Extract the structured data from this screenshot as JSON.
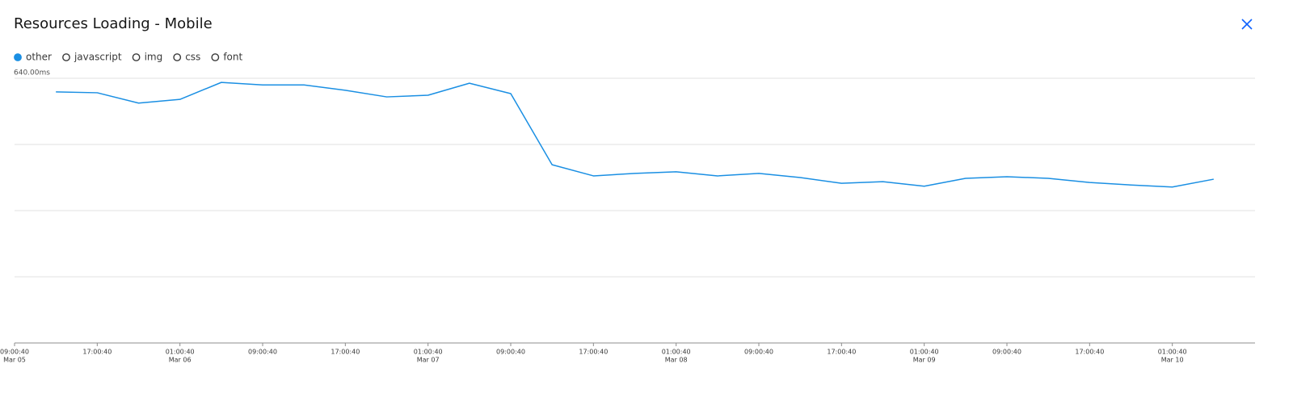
{
  "chart_data": {
    "type": "line",
    "title": "Resources Loading - Mobile",
    "series": [
      {
        "name": "other",
        "color": "#1a8fe3",
        "values": [
          607,
          605,
          580,
          589,
          630,
          624,
          624,
          611,
          595,
          599,
          628,
          603,
          431,
          404,
          410,
          414,
          404,
          410,
          400,
          386,
          390,
          379,
          398,
          402,
          398,
          388,
          382,
          377,
          396
        ]
      }
    ],
    "hidden_series": [
      "javascript",
      "img",
      "css",
      "font"
    ],
    "x": [
      "Mar 05 13:00:40",
      "Mar 05 17:00:40",
      "Mar 05 21:00:40",
      "Mar 06 01:00:40",
      "Mar 06 05:00:40",
      "Mar 06 09:00:40",
      "Mar 06 13:00:40",
      "Mar 06 17:00:40",
      "Mar 06 21:00:40",
      "Mar 07 01:00:40",
      "Mar 07 05:00:40",
      "Mar 07 09:00:40",
      "Mar 07 13:00:40",
      "Mar 07 17:00:40",
      "Mar 07 21:00:40",
      "Mar 08 01:00:40",
      "Mar 08 05:00:40",
      "Mar 08 09:00:40",
      "Mar 08 13:00:40",
      "Mar 08 17:00:40",
      "Mar 08 21:00:40",
      "Mar 09 01:00:40",
      "Mar 09 05:00:40",
      "Mar 09 09:00:40",
      "Mar 09 13:00:40",
      "Mar 09 17:00:40",
      "Mar 09 21:00:40",
      "Mar 10 01:00:40",
      "Mar 10 05:00:40"
    ],
    "xlim": [
      "Mar 05 09:00:40",
      "Mar 10 09:00:40"
    ],
    "xticks": [
      {
        "value": "Mar 05 09:00:40",
        "label": "09:00:40",
        "date": "Mar 05"
      },
      {
        "value": "Mar 05 17:00:40",
        "label": "17:00:40"
      },
      {
        "value": "Mar 06 01:00:40",
        "label": "01:00:40",
        "date": "Mar 06"
      },
      {
        "value": "Mar 06 09:00:40",
        "label": "09:00:40"
      },
      {
        "value": "Mar 06 17:00:40",
        "label": "17:00:40"
      },
      {
        "value": "Mar 07 01:00:40",
        "label": "01:00:40",
        "date": "Mar 07"
      },
      {
        "value": "Mar 07 09:00:40",
        "label": "09:00:40"
      },
      {
        "value": "Mar 07 17:00:40",
        "label": "17:00:40"
      },
      {
        "value": "Mar 08 01:00:40",
        "label": "01:00:40",
        "date": "Mar 08"
      },
      {
        "value": "Mar 08 09:00:40",
        "label": "09:00:40"
      },
      {
        "value": "Mar 08 17:00:40",
        "label": "17:00:40"
      },
      {
        "value": "Mar 09 01:00:40",
        "label": "01:00:40",
        "date": "Mar 09"
      },
      {
        "value": "Mar 09 09:00:40",
        "label": "09:00:40"
      },
      {
        "value": "Mar 09 17:00:40",
        "label": "17:00:40"
      },
      {
        "value": "Mar 10 01:00:40",
        "label": "01:00:40",
        "date": "Mar 10"
      }
    ],
    "ylim": [
      0,
      640
    ],
    "yticks": [
      {
        "value": 640,
        "label": "640.00ms"
      }
    ],
    "ygrid": [
      0,
      160,
      320,
      480,
      640
    ],
    "grid": true
  }
}
